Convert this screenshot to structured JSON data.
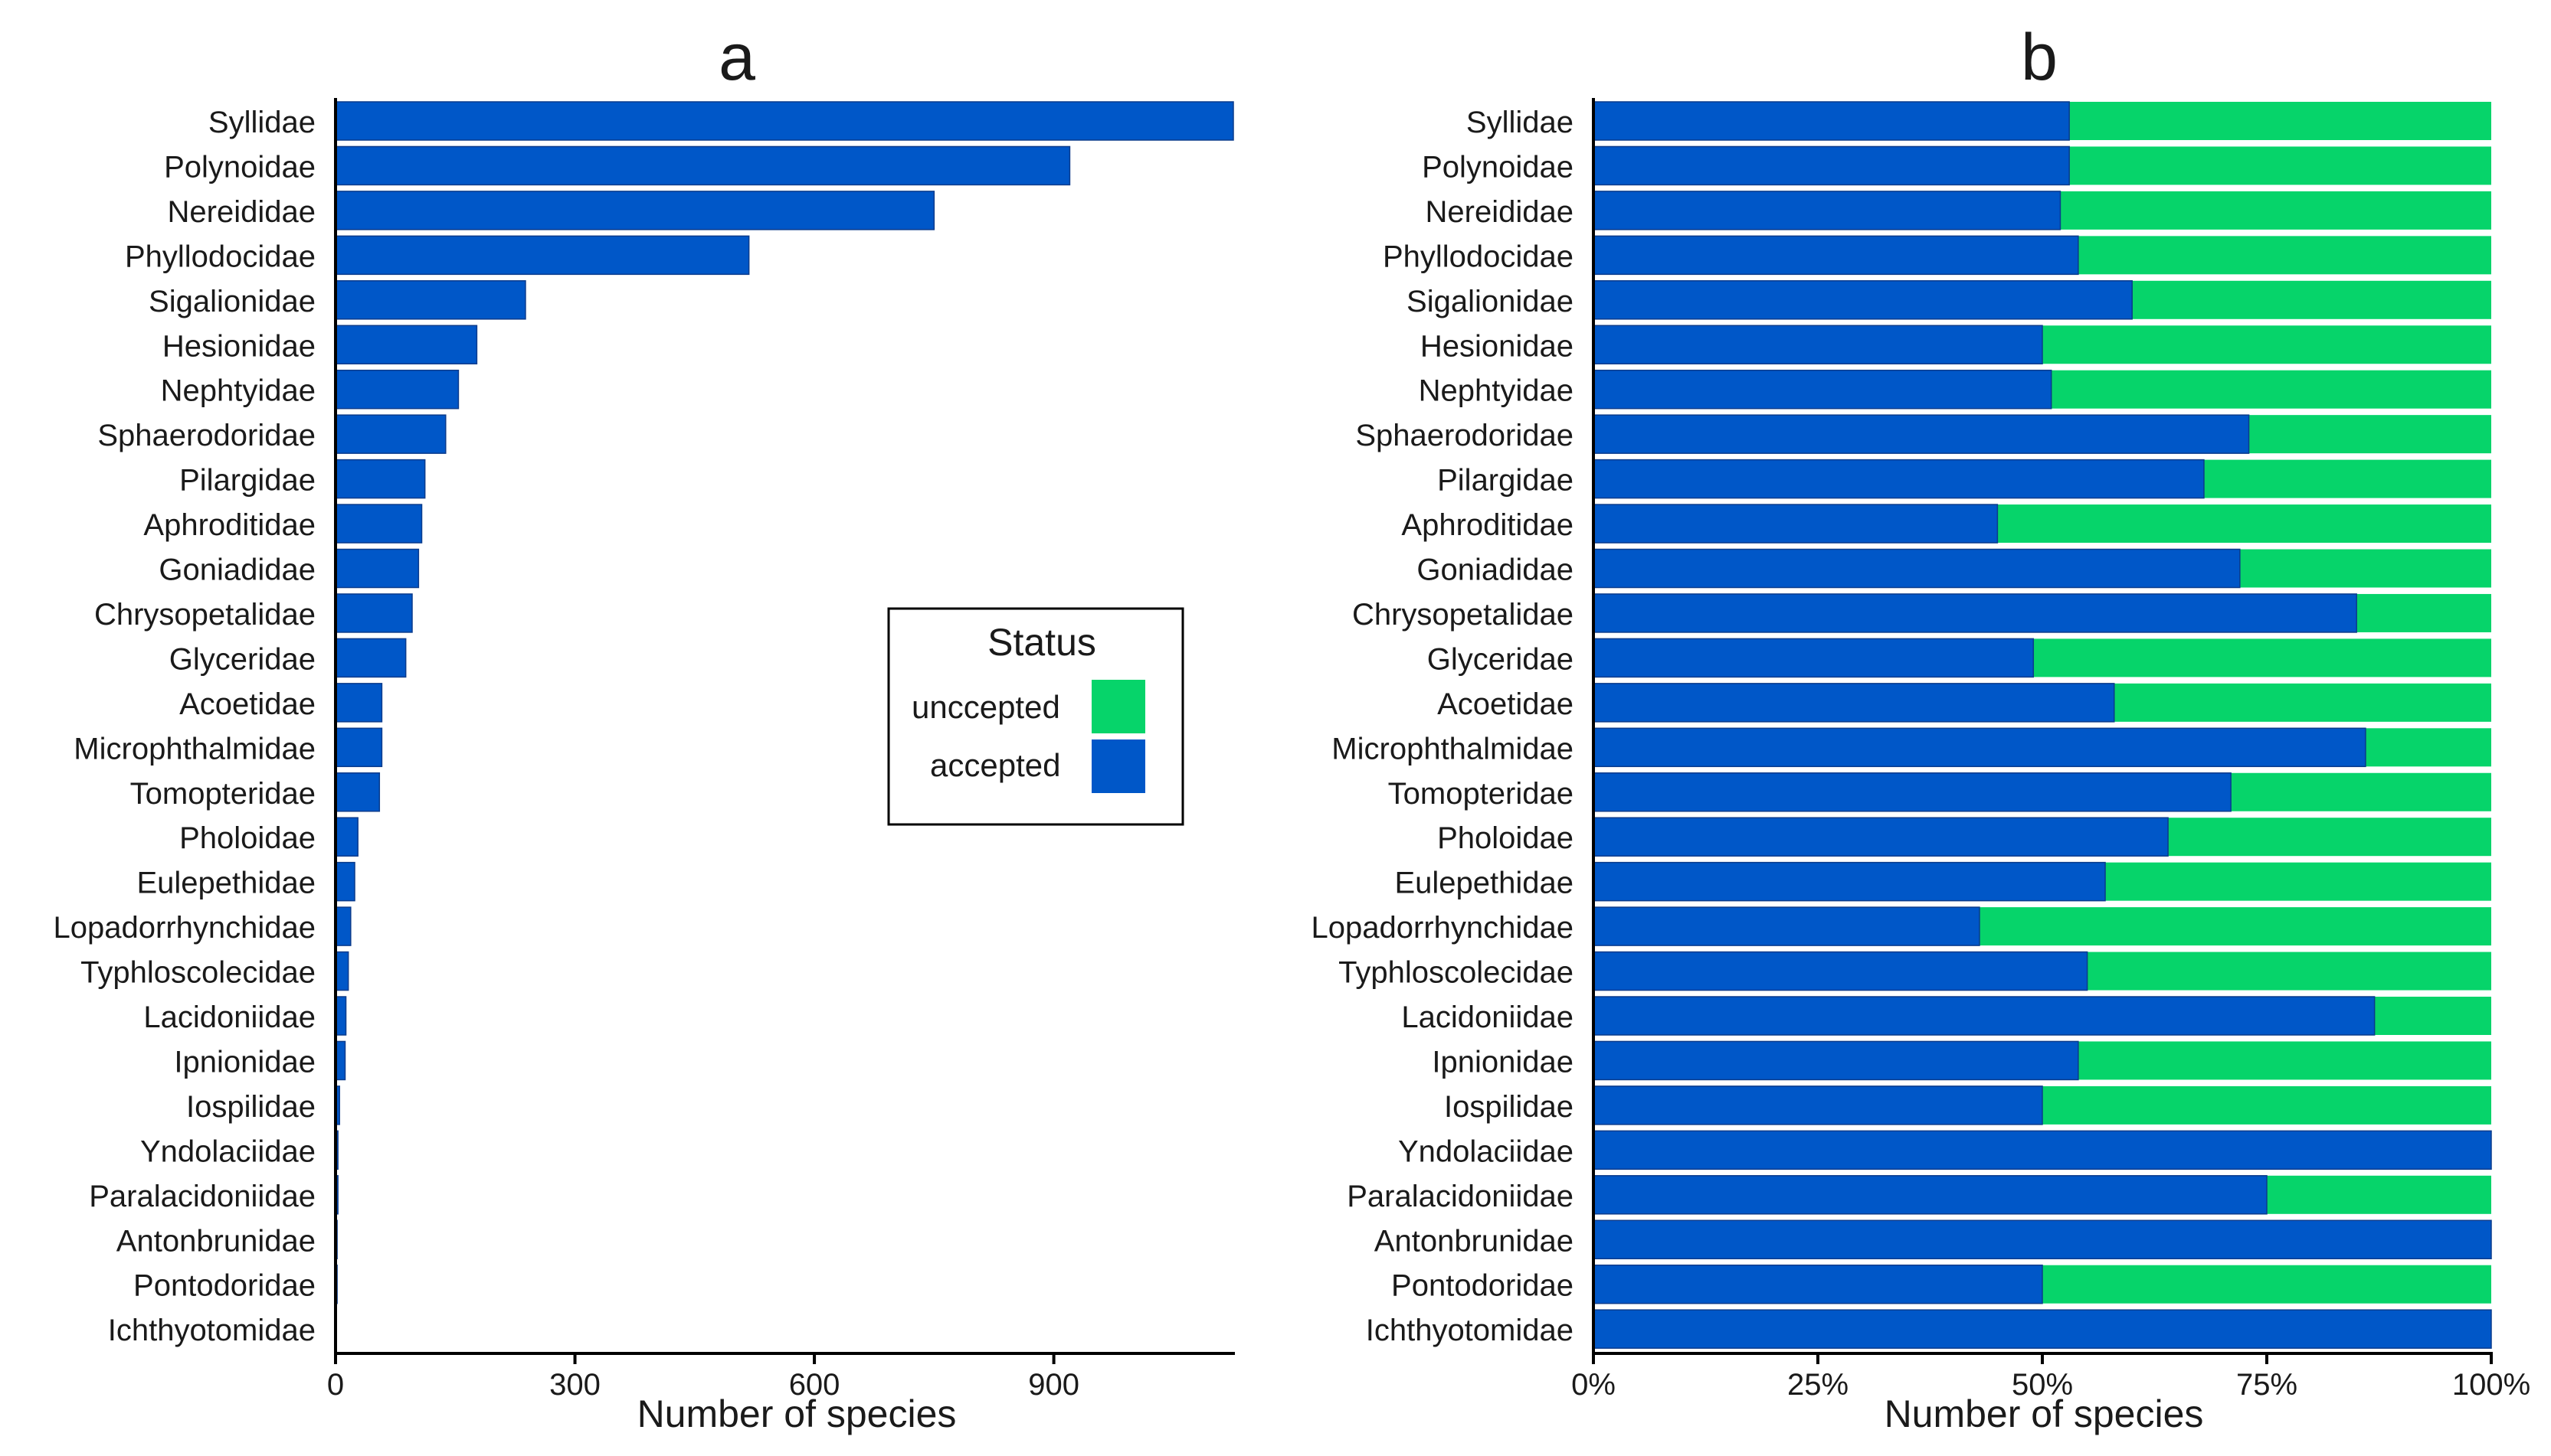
{
  "colors": {
    "accepted": "#0057c8",
    "unaccepted": "#06d46a",
    "axis": "#000000",
    "text": "#1a1a1a",
    "legend_border": "#000000"
  },
  "panel_a_label": "a",
  "panel_b_label": "b",
  "legend": {
    "title": "Status",
    "entries": [
      {
        "label": "unccepted",
        "color_key": "unaccepted"
      },
      {
        "label": "accepted",
        "color_key": "accepted"
      }
    ]
  },
  "chart_data": [
    {
      "type": "bar",
      "orientation": "horizontal",
      "panel": "a",
      "title": "a",
      "xlabel": "Number of species",
      "ylabel": "",
      "xlim": [
        0,
        1125
      ],
      "xticks": [
        0,
        300,
        600,
        900
      ],
      "xtick_labels": [
        "0",
        "300",
        "600",
        "900"
      ],
      "categories": [
        "Syllidae",
        "Polynoidae",
        "Nereididae",
        "Phyllodocidae",
        "Sigalionidae",
        "Hesionidae",
        "Nephtyidae",
        "Sphaerodoridae",
        "Pilargidae",
        "Aphroditidae",
        "Goniadidae",
        "Chrysopetalidae",
        "Glyceridae",
        "Acoetidae",
        "Microphthalmidae",
        "Tomopteridae",
        "Pholoidae",
        "Eulepethidae",
        "Lopadorrhynchidae",
        "Typhloscolecidae",
        "Lacidoniidae",
        "Ipnionidae",
        "Iospilidae",
        "Yndolaciidae",
        "Paralacidoniidae",
        "Antonbrunidae",
        "Pontodoridae",
        "Ichthyotomidae"
      ],
      "values": [
        1125,
        920,
        750,
        518,
        238,
        177,
        154,
        138,
        112,
        108,
        104,
        96,
        88,
        58,
        58,
        55,
        28,
        24,
        19,
        16,
        13,
        12,
        5,
        3,
        3,
        2,
        2,
        1
      ]
    },
    {
      "type": "bar",
      "orientation": "horizontal",
      "stacked": "percent",
      "panel": "b",
      "title": "b",
      "xlabel": "Number of species",
      "ylabel": "",
      "xlim": [
        0,
        100
      ],
      "xticks": [
        0,
        25,
        50,
        75,
        100
      ],
      "xtick_labels": [
        "0%",
        "25%",
        "50%",
        "75%",
        "100%"
      ],
      "categories": [
        "Syllidae",
        "Polynoidae",
        "Nereididae",
        "Phyllodocidae",
        "Sigalionidae",
        "Hesionidae",
        "Nephtyidae",
        "Sphaerodoridae",
        "Pilargidae",
        "Aphroditidae",
        "Goniadidae",
        "Chrysopetalidae",
        "Glyceridae",
        "Acoetidae",
        "Microphthalmidae",
        "Tomopteridae",
        "Pholoidae",
        "Eulepethidae",
        "Lopadorrhynchidae",
        "Typhloscolecidae",
        "Lacidoniidae",
        "Ipnionidae",
        "Iospilidae",
        "Yndolaciidae",
        "Paralacidoniidae",
        "Antonbrunidae",
        "Pontodoridae",
        "Ichthyotomidae"
      ],
      "series": [
        {
          "name": "accepted",
          "values": [
            53,
            53,
            52,
            54,
            60,
            50,
            51,
            73,
            68,
            45,
            72,
            85,
            49,
            58,
            86,
            71,
            64,
            57,
            43,
            55,
            87,
            54,
            50,
            100,
            75,
            100,
            50,
            100
          ]
        },
        {
          "name": "unccepted",
          "values": [
            47,
            47,
            48,
            46,
            40,
            50,
            49,
            27,
            32,
            55,
            28,
            15,
            51,
            42,
            14,
            29,
            36,
            43,
            57,
            45,
            13,
            46,
            50,
            0,
            25,
            0,
            50,
            0
          ]
        }
      ]
    }
  ]
}
